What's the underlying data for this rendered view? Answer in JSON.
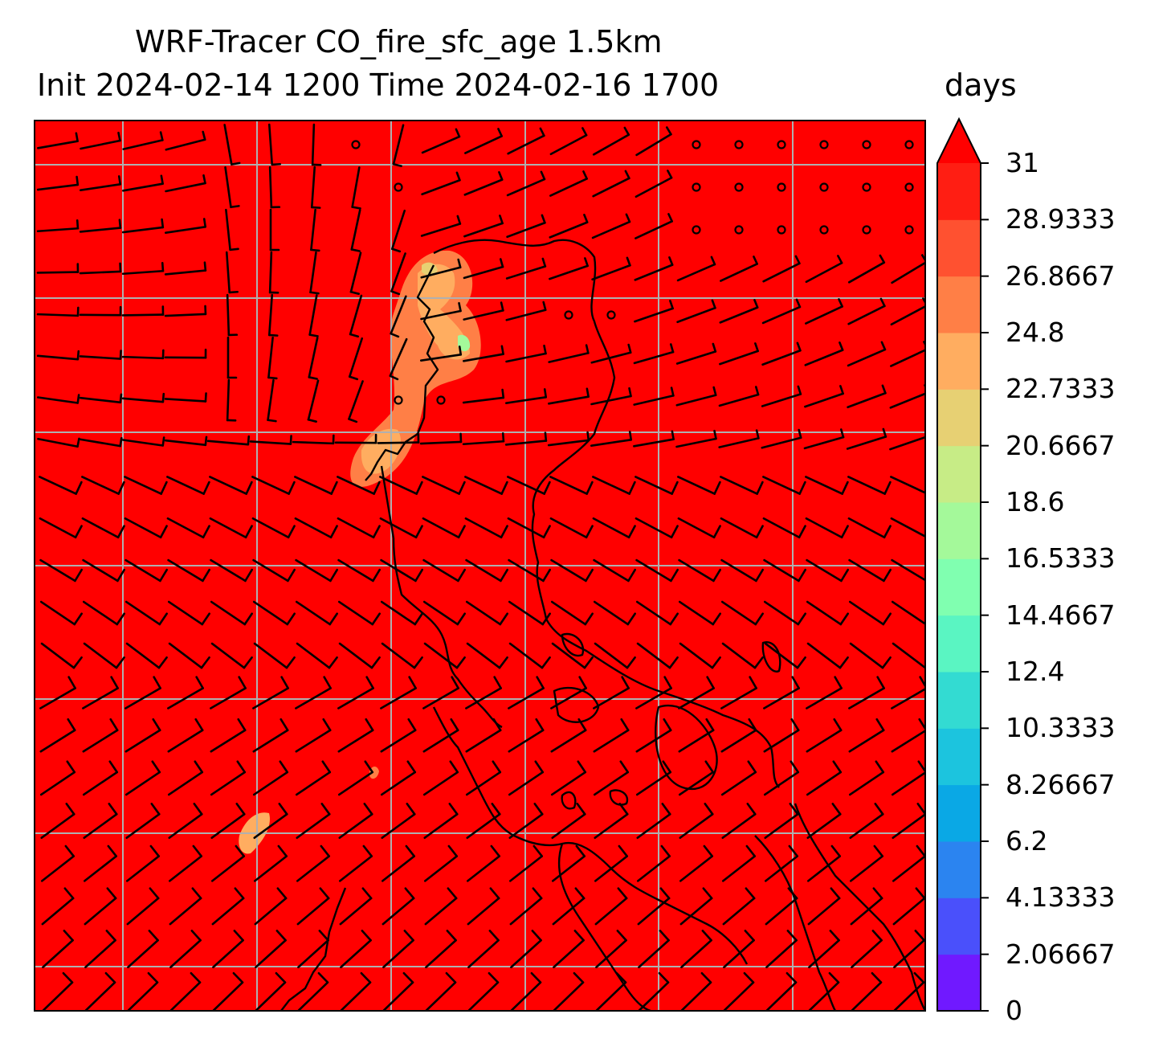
{
  "title": {
    "line1": "WRF-Tracer CO_fire_sfc_age 1.5km",
    "line2": "Init 2024-02-14 1200 Time 2024-02-16 1700"
  },
  "units": "days",
  "colorbar": {
    "extend": "max",
    "ticks": [
      "0",
      "2.06667",
      "4.13333",
      "6.2",
      "8.26667",
      "10.3333",
      "12.4",
      "14.4667",
      "16.5333",
      "18.6",
      "20.6667",
      "22.7333",
      "24.8",
      "26.8667",
      "28.9333",
      "31"
    ],
    "colors": [
      "#7019ff",
      "#4a50fb",
      "#2b84f0",
      "#0aa8e5",
      "#1cc4de",
      "#33dbd2",
      "#5af5c2",
      "#80ffb0",
      "#a4f99a",
      "#c7ec86",
      "#e7d073",
      "#ffad60",
      "#ff7f46",
      "#ff5130",
      "#ff1e13",
      "#ff0000"
    ]
  },
  "map": {
    "field_color": "#ff0000",
    "grid_color": "#b0b0b0",
    "coast_color": "#000000",
    "barb_color": "#000000"
  }
}
